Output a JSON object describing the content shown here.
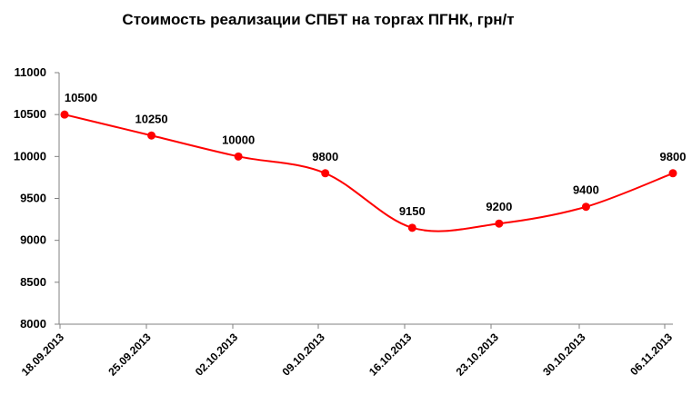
{
  "chart_data": {
    "type": "line",
    "title": "Стоимость реализации СПБТ на торгах ПГНК, грн/т",
    "xlabel": "",
    "ylabel": "",
    "categories": [
      "18.09.2013",
      "25.09.2013",
      "02.10.2013",
      "09.10.2013",
      "16.10.2013",
      "23.10.2013",
      "30.10.2013",
      "06.11.2013"
    ],
    "series": [
      {
        "values": [
          10500,
          10250,
          10000,
          9800,
          9150,
          9200,
          9400,
          9800
        ]
      }
    ],
    "data_labels": [
      "10500",
      "10250",
      "10000",
      "9800",
      "9150",
      "9200",
      "9400",
      "9800"
    ],
    "y_ticks": [
      "8000",
      "8500",
      "9000",
      "9500",
      "10000",
      "10500",
      "11000"
    ],
    "ylim": [
      8000,
      11000
    ],
    "grid": false,
    "legend": "none",
    "line_color": "#ff0000",
    "marker_color": "#ff0000",
    "axis_color": "#808080"
  }
}
